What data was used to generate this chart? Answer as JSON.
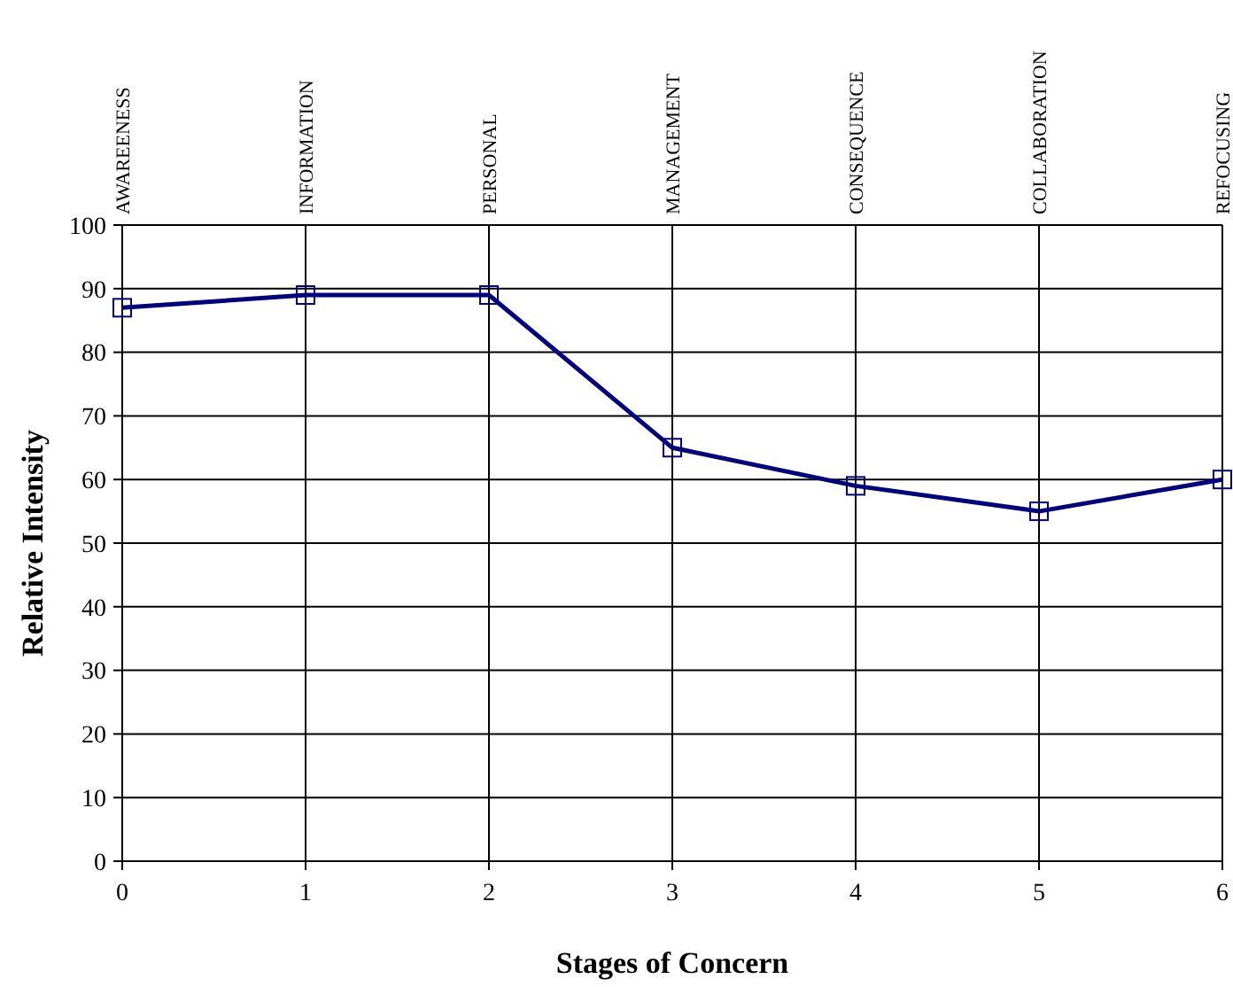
{
  "chart_data": {
    "type": "line",
    "xlabel": "Stages of Concern",
    "ylabel": "Relative Intensity",
    "x": [
      0,
      1,
      2,
      3,
      4,
      5,
      6
    ],
    "series": [
      {
        "color": "#000080",
        "values": [
          87,
          89,
          89,
          65,
          59,
          55,
          60
        ]
      }
    ],
    "xlim": [
      0,
      6
    ],
    "xticks": [
      0,
      1,
      2,
      3,
      4,
      5,
      6
    ],
    "annotations": [
      "AWAREENESS",
      "INFORMATION",
      "PERSONAL",
      "MANAGEMENT",
      "CONSEQUENCE",
      "COLLABORATION",
      "REFOCUSING"
    ],
    "ylim": [
      0,
      100
    ],
    "yticks": [
      0,
      10,
      20,
      30,
      40,
      50,
      60,
      70,
      80,
      90,
      100
    ],
    "grid": true,
    "marker": "square",
    "line_style": "solid"
  }
}
